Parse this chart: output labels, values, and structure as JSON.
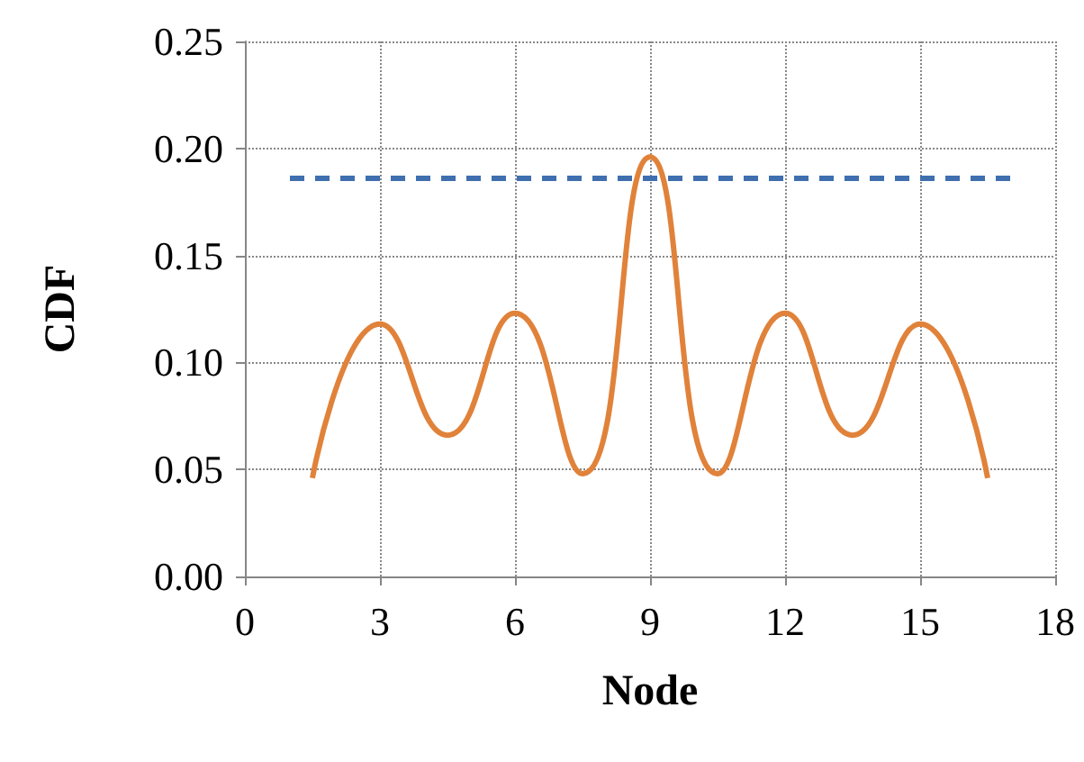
{
  "chart_data": {
    "type": "line",
    "xlabel": "Node",
    "ylabel": "CDF",
    "xlim": [
      0,
      18
    ],
    "xticks": [
      0,
      3,
      6,
      9,
      12,
      15,
      18
    ],
    "ylim": [
      0,
      0.25
    ],
    "yticks": [
      {
        "value": 0,
        "label": "0.00"
      },
      {
        "value": 0.05,
        "label": "0.05"
      },
      {
        "value": 0.1,
        "label": "0.10"
      },
      {
        "value": 0.15,
        "label": "0.15"
      },
      {
        "value": 0.2,
        "label": "0.20"
      },
      {
        "value": 0.25,
        "label": "0.25"
      }
    ],
    "grid": true,
    "marker": "none",
    "series": [
      {
        "color": "#3f6fae",
        "line_style": "dashed",
        "x": [
          1,
          17
        ],
        "values": [
          0.186,
          0.186
        ]
      },
      {
        "color": "#e0823a",
        "line_style": "solid",
        "x": [
          1.5,
          3,
          4.5,
          6,
          7.5,
          9,
          10.5,
          12,
          13.5,
          15,
          16.5
        ],
        "values": [
          0.046,
          0.118,
          0.066,
          0.123,
          0.048,
          0.196,
          0.048,
          0.123,
          0.066,
          0.118,
          0.046
        ]
      }
    ]
  }
}
